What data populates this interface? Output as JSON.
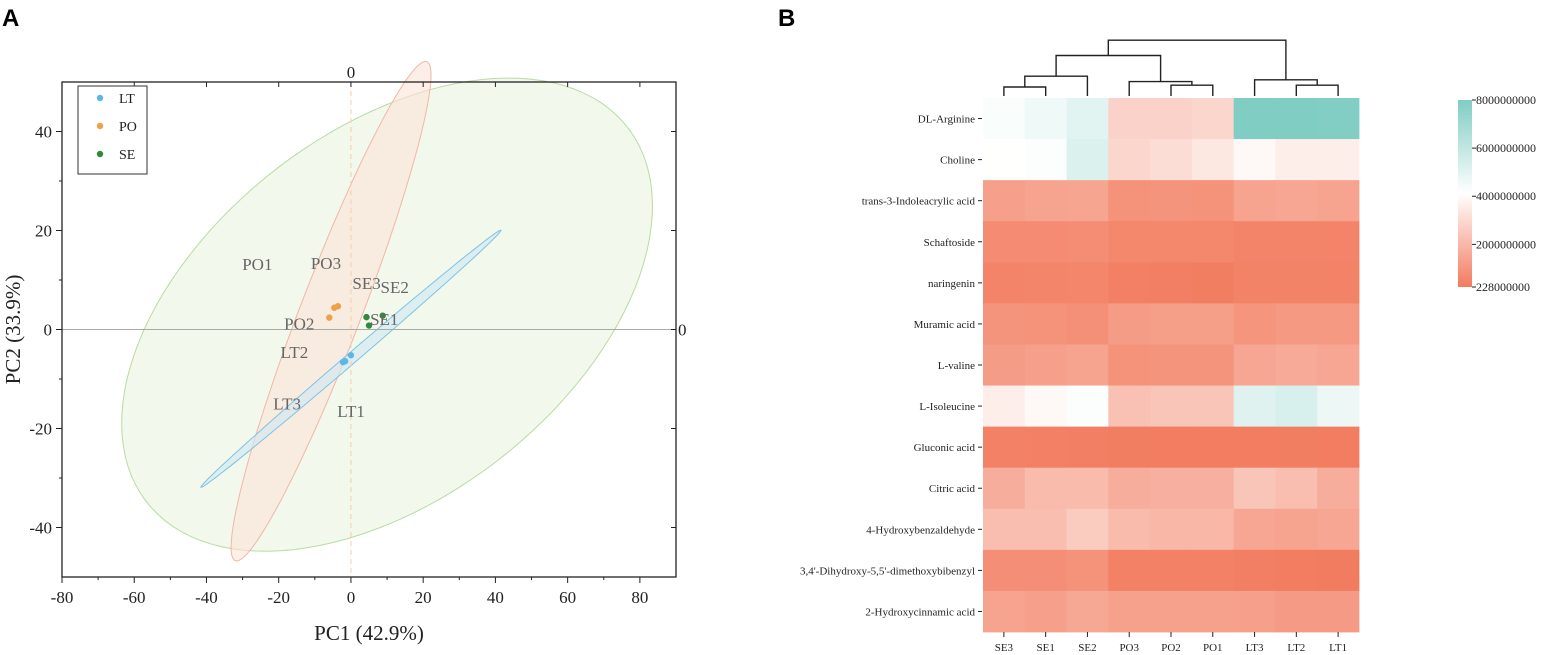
{
  "panels": {
    "a": "A",
    "b": "B"
  },
  "colors": {
    "LT": "#5bb8e6",
    "PO": "#f0a04a",
    "SE": "#2e8b3e",
    "heat_low": "#f27b5e",
    "heat_mid": "#ffffff",
    "heat_high": "#7fcdc3"
  },
  "chart_data": [
    {
      "type": "scatter",
      "title": "",
      "xlabel": "PC1 (42.9%)",
      "ylabel": "PC2 (33.9%)",
      "xlim": [
        -80,
        90
      ],
      "ylim": [
        -50,
        50
      ],
      "xticks": [
        -80,
        -60,
        -40,
        -20,
        0,
        20,
        40,
        60,
        80
      ],
      "yticks": [
        -40,
        -20,
        0,
        20,
        40
      ],
      "zero_label_top": "0",
      "zero_label_right": "0",
      "legend": [
        "LT",
        "PO",
        "SE"
      ],
      "points": [
        {
          "group": "LT",
          "label": "LT1",
          "x": 0,
          "y": -5.2
        },
        {
          "group": "LT",
          "label": "LT2",
          "x": -1.6,
          "y": -6.4
        },
        {
          "group": "LT",
          "label": "LT3",
          "x": -2.2,
          "y": -6.6
        },
        {
          "group": "PO",
          "label": "PO1",
          "x": -4.6,
          "y": 4.4
        },
        {
          "group": "PO",
          "label": "PO2",
          "x": -6.0,
          "y": 2.4
        },
        {
          "group": "PO",
          "label": "PO3",
          "x": -3.6,
          "y": 4.7
        },
        {
          "group": "SE",
          "label": "SE1",
          "x": 5.0,
          "y": 0.8
        },
        {
          "group": "SE",
          "label": "SE2",
          "x": 8.8,
          "y": 2.8
        },
        {
          "group": "SE",
          "label": "SE3",
          "x": 4.3,
          "y": 2.5
        }
      ],
      "point_label_offsets": {
        "PO1": [
          -25.5,
          7.6
        ],
        "PO2": [
          -12.5,
          -2.4
        ],
        "PO3": [
          -7.5,
          7.5
        ],
        "SE1": [
          0.3,
          0.1
        ],
        "SE2": [
          -0.6,
          4.6
        ],
        "SE3": [
          -3.9,
          5.7
        ],
        "LT1": [
          -3.8,
          -12.5
        ],
        "LT2": [
          -17.9,
          0.6
        ],
        "LT3": [
          -19.3,
          -9.6
        ]
      },
      "ellipses": [
        {
          "group": "SE",
          "center": [
            10,
            3
          ],
          "semi_axes": [
            78,
            40
          ],
          "angle_deg": 23
        },
        {
          "group": "PO",
          "center": [
            -5.5,
            3.7
          ],
          "semi_axes": [
            57,
            8
          ],
          "angle_deg": 62
        },
        {
          "group": "LT",
          "center": [
            0,
            -5.9
          ],
          "semi_axes": [
            49,
            1.2
          ],
          "angle_deg": 32
        }
      ]
    },
    {
      "type": "heatmap",
      "title": "",
      "columns": [
        "SE3",
        "SE1",
        "SE2",
        "PO3",
        "PO2",
        "PO1",
        "LT3",
        "LT2",
        "LT1"
      ],
      "rows": [
        "DL-Arginine",
        "Choline",
        "trans-3-Indoleacrylic acid",
        "Schaftoside",
        "naringenin",
        "Muramic acid",
        "L-valine",
        "L-Isoleucine",
        "Gluconic acid",
        "Citric acid",
        "4-Hydroxybenzaldehyde",
        "3,4'-Dihydroxy-5,5'-dimethoxybibenzyl",
        "2-Hydroxycinnamic acid"
      ],
      "values": [
        [
          4300000000,
          4600000000,
          5000000000,
          2800000000,
          2800000000,
          2900000000,
          8000000000,
          8000000000,
          7900000000
        ],
        [
          4100000000,
          4200000000,
          5200000000,
          2900000000,
          3100000000,
          3400000000,
          3900000000,
          3600000000,
          3600000000
        ],
        [
          1300000000,
          1400000000,
          1450000000,
          900000000,
          950000000,
          900000000,
          1400000000,
          1500000000,
          1400000000
        ],
        [
          700000000,
          700000000,
          750000000,
          600000000,
          600000000,
          600000000,
          500000000,
          500000000,
          500000000
        ],
        [
          500000000,
          520000000,
          550000000,
          380000000,
          350000000,
          330000000,
          450000000,
          450000000,
          450000000
        ],
        [
          950000000,
          900000000,
          850000000,
          1200000000,
          1250000000,
          1250000000,
          1000000000,
          1100000000,
          1100000000
        ],
        [
          1200000000,
          1300000000,
          1400000000,
          900000000,
          950000000,
          950000000,
          1500000000,
          1600000000,
          1500000000
        ],
        [
          3600000000,
          3900000000,
          4200000000,
          2300000000,
          2400000000,
          2400000000,
          5100000000,
          5300000000,
          4700000000
        ],
        [
          400000000,
          380000000,
          350000000,
          320000000,
          300000000,
          300000000,
          300000000,
          320000000,
          300000000
        ],
        [
          1700000000,
          2100000000,
          2100000000,
          1700000000,
          1800000000,
          1800000000,
          2400000000,
          2200000000,
          1700000000
        ],
        [
          2200000000,
          2200000000,
          2600000000,
          2100000000,
          2000000000,
          2000000000,
          1500000000,
          1400000000,
          1500000000
        ],
        [
          800000000,
          800000000,
          900000000,
          400000000,
          400000000,
          400000000,
          350000000,
          300000000,
          250000000
        ],
        [
          1400000000,
          1300000000,
          1550000000,
          1350000000,
          1350000000,
          1350000000,
          1300000000,
          1150000000,
          1150000000
        ]
      ],
      "colorbar_range": [
        228000000,
        8000000000
      ],
      "colorbar_ticks": [
        8000000000,
        6000000000,
        4000000000,
        2000000000,
        228000000
      ],
      "colorbar_tick_labels": [
        "8000000000",
        "6000000000",
        "4000000000",
        "2000000000",
        "228000000"
      ],
      "dendrogram": {
        "merges": [
          [
            0,
            1,
            0.1
          ],
          [
            9,
            2,
            0.22
          ],
          [
            4,
            5,
            0.12
          ],
          [
            3,
            11,
            0.16
          ],
          [
            7,
            8,
            0.12
          ],
          [
            6,
            13,
            0.18
          ],
          [
            10,
            12,
            0.45
          ],
          [
            15,
            14,
            0.62
          ]
        ]
      }
    }
  ]
}
